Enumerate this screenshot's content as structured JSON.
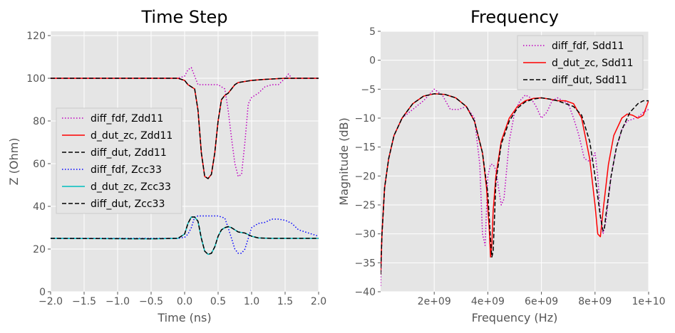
{
  "chart_data": [
    {
      "type": "line",
      "title": "Time Step",
      "xlabel": "Time (ns)",
      "ylabel": "Z (Ohm)",
      "xlim": [
        -2.0,
        2.0
      ],
      "ylim": [
        0,
        122
      ],
      "xticks": [
        -2.0,
        -1.5,
        -1.0,
        -0.5,
        0.0,
        0.5,
        1.0,
        1.5,
        2.0
      ],
      "xtick_labels": [
        "−2.0",
        "−1.5",
        "−1.0",
        "−0.5",
        "0.0",
        "0.5",
        "1.0",
        "1.5",
        "2.0"
      ],
      "yticks": [
        0,
        20,
        40,
        60,
        80,
        100,
        120
      ],
      "ytick_labels": [
        "0",
        "20",
        "40",
        "60",
        "80",
        "100",
        "120"
      ],
      "grid": true,
      "legend_position": "center-left",
      "series": [
        {
          "name": "diff_fdf, Zdd11",
          "color": "#bf00bf",
          "dash": "dotted",
          "x": [
            -2.0,
            -0.5,
            -0.1,
            0.0,
            0.05,
            0.1,
            0.15,
            0.2,
            0.3,
            0.4,
            0.5,
            0.6,
            0.65,
            0.7,
            0.75,
            0.8,
            0.85,
            0.9,
            0.95,
            1.0,
            1.1,
            1.2,
            1.3,
            1.4,
            1.5,
            1.55,
            1.6,
            1.7,
            1.8,
            2.0
          ],
          "y": [
            100,
            100,
            100,
            101,
            104,
            105,
            101,
            97,
            97,
            97,
            97,
            95,
            85,
            72,
            60,
            54,
            55,
            70,
            88,
            91,
            93,
            96,
            97,
            97,
            100,
            102,
            100,
            100,
            100,
            100
          ]
        },
        {
          "name": "d_dut_zc, Zdd11",
          "color": "#ff0000",
          "dash": "solid",
          "x": [
            -2.0,
            -0.5,
            -0.1,
            0.0,
            0.05,
            0.1,
            0.15,
            0.2,
            0.25,
            0.3,
            0.35,
            0.4,
            0.45,
            0.5,
            0.55,
            0.6,
            0.65,
            0.7,
            0.75,
            0.8,
            0.9,
            1.0,
            1.2,
            1.5,
            2.0
          ],
          "y": [
            100,
            100,
            100,
            99,
            97,
            96,
            95,
            85,
            65,
            54,
            53,
            55,
            65,
            80,
            90,
            92,
            93,
            95,
            97,
            98,
            98.5,
            99,
            99.5,
            100,
            100
          ]
        },
        {
          "name": "diff_dut, Zdd11",
          "color": "#000000",
          "dash": "dashed",
          "x": [
            -2.0,
            -0.5,
            -0.1,
            0.0,
            0.05,
            0.1,
            0.15,
            0.2,
            0.25,
            0.3,
            0.35,
            0.4,
            0.45,
            0.5,
            0.55,
            0.6,
            0.65,
            0.7,
            0.75,
            0.8,
            0.9,
            1.0,
            1.2,
            1.5,
            2.0
          ],
          "y": [
            100,
            100,
            100,
            99,
            97,
            96,
            95,
            85,
            65,
            54,
            53,
            55,
            65,
            80,
            90,
            92,
            93,
            95,
            97,
            98,
            98.5,
            99,
            99.5,
            100,
            100
          ]
        },
        {
          "name": "diff_fdf, Zcc33",
          "color": "#0000ff",
          "dash": "dotted",
          "x": [
            -2.0,
            -0.5,
            -0.1,
            0.0,
            0.05,
            0.1,
            0.15,
            0.2,
            0.3,
            0.4,
            0.5,
            0.6,
            0.65,
            0.7,
            0.75,
            0.8,
            0.85,
            0.9,
            0.95,
            1.0,
            1.1,
            1.2,
            1.3,
            1.4,
            1.5,
            1.6,
            1.7,
            1.8,
            2.0
          ],
          "y": [
            25,
            25,
            25,
            25.5,
            27,
            30,
            35,
            35.5,
            35.5,
            35.5,
            35.5,
            34.5,
            30,
            25,
            20,
            18,
            18,
            20,
            25,
            30,
            32,
            32.5,
            34,
            34,
            33.5,
            32,
            29,
            28,
            26
          ]
        },
        {
          "name": "d_dut_zc, Zcc33",
          "color": "#00bfbf",
          "dash": "solid",
          "x": [
            -2.0,
            -0.5,
            -0.1,
            0.0,
            0.05,
            0.1,
            0.15,
            0.2,
            0.25,
            0.3,
            0.35,
            0.4,
            0.45,
            0.5,
            0.55,
            0.6,
            0.65,
            0.7,
            0.75,
            0.8,
            0.9,
            1.0,
            1.1,
            1.3,
            1.5,
            2.0
          ],
          "y": [
            25,
            24.8,
            25,
            27,
            32,
            35,
            35,
            33,
            25,
            19,
            17.5,
            18,
            21,
            26,
            29,
            30,
            30.5,
            30,
            29,
            28,
            27.5,
            26,
            25.2,
            25,
            25,
            25
          ]
        },
        {
          "name": "diff_dut, Zcc33",
          "color": "#000000",
          "dash": "dashed",
          "x": [
            -2.0,
            -0.5,
            -0.1,
            0.0,
            0.05,
            0.1,
            0.15,
            0.2,
            0.25,
            0.3,
            0.35,
            0.4,
            0.45,
            0.5,
            0.55,
            0.6,
            0.65,
            0.7,
            0.75,
            0.8,
            0.9,
            1.0,
            1.1,
            1.3,
            1.5,
            2.0
          ],
          "y": [
            25,
            24.8,
            25,
            27,
            32,
            35,
            35,
            33,
            25,
            19,
            17.5,
            18,
            21,
            26,
            29,
            30,
            30.5,
            30,
            29,
            28,
            27.5,
            26,
            25.2,
            25,
            25,
            25
          ]
        }
      ]
    },
    {
      "type": "line",
      "title": "Frequency",
      "xlabel": "Frequency (Hz)",
      "ylabel": "Magnitude (dB)",
      "xlim": [
        0,
        10000000000
      ],
      "ylim": [
        -40,
        5
      ],
      "xticks": [
        2000000000,
        4000000000,
        6000000000,
        8000000000,
        10000000000
      ],
      "xtick_labels": [
        "2e+09",
        "4e+09",
        "6e+09",
        "8e+09",
        "1e+10"
      ],
      "yticks": [
        -40,
        -35,
        -30,
        -25,
        -20,
        -15,
        -10,
        -5,
        0,
        5
      ],
      "ytick_labels": [
        "−40",
        "−35",
        "−30",
        "−25",
        "−20",
        "−15",
        "−10",
        "−5",
        "0",
        "5"
      ],
      "grid": true,
      "legend_position": "upper-right",
      "series": [
        {
          "name": "diff_fdf, Sdd11",
          "color": "#bf00bf",
          "dash": "dotted",
          "x": [
            0,
            50000000,
            150000000,
            300000000,
            500000000,
            800000000,
            1200000000,
            1600000000,
            2000000000,
            2300000000,
            2600000000,
            2900000000,
            3200000000,
            3500000000,
            3700000000,
            3800000000,
            3900000000,
            4000000000,
            4100000000,
            4200000000,
            4300000000,
            4400000000,
            4500000000,
            4600000000,
            4800000000,
            5000000000,
            5200000000,
            5400000000,
            5600000000,
            5800000000,
            6000000000,
            6200000000,
            6400000000,
            6600000000,
            6800000000,
            7000000000,
            7200000000,
            7400000000,
            7600000000,
            7800000000,
            7900000000,
            8000000000,
            8100000000,
            8200000000,
            8300000000,
            8400000000,
            8600000000,
            8800000000,
            9000000000,
            9200000000,
            9400000000,
            9600000000,
            9800000000,
            10000000000
          ],
          "y": [
            -39,
            -30,
            -22,
            -17,
            -13,
            -10,
            -8.5,
            -7,
            -5,
            -6,
            -8.5,
            -8.5,
            -8,
            -10,
            -18,
            -30,
            -32,
            -20,
            -18,
            -18,
            -19,
            -22,
            -25,
            -24,
            -14,
            -9,
            -7,
            -6,
            -6.5,
            -8,
            -10,
            -9,
            -7,
            -6.5,
            -7,
            -7.5,
            -10,
            -13,
            -17,
            -17.5,
            -17,
            -16,
            -20,
            -27,
            -30,
            -28,
            -20,
            -15,
            -12,
            -10.5,
            -10.2,
            -9.8,
            -9,
            -8.5
          ]
        },
        {
          "name": "d_dut_zc, Sdd11",
          "color": "#ff0000",
          "dash": "solid",
          "x": [
            0,
            50000000,
            150000000,
            300000000,
            500000000,
            800000000,
            1200000000,
            1600000000,
            2000000000,
            2400000000,
            2800000000,
            3200000000,
            3500000000,
            3800000000,
            3950000000,
            4050000000,
            4100000000,
            4150000000,
            4200000000,
            4300000000,
            4500000000,
            4800000000,
            5100000000,
            5400000000,
            5700000000,
            6000000000,
            6300000000,
            6600000000,
            6900000000,
            7200000000,
            7500000000,
            7800000000,
            8000000000,
            8100000000,
            8200000000,
            8300000000,
            8500000000,
            8700000000,
            9000000000,
            9200000000,
            9400000000,
            9600000000,
            9800000000,
            10000000000
          ],
          "y": [
            -37,
            -30,
            -22,
            -17,
            -13,
            -10,
            -7.5,
            -6.2,
            -5.8,
            -5.9,
            -6.5,
            -8,
            -10.5,
            -16,
            -22,
            -29,
            -34,
            -32,
            -26,
            -20,
            -14,
            -10,
            -8,
            -7,
            -6.6,
            -6.5,
            -6.7,
            -7,
            -7,
            -7.5,
            -10,
            -17,
            -25,
            -30,
            -30.5,
            -26,
            -18,
            -13,
            -10,
            -9.3,
            -9.5,
            -10,
            -9.5,
            -7
          ]
        },
        {
          "name": "diff_dut, Sdd11",
          "color": "#000000",
          "dash": "dashed",
          "x": [
            0,
            50000000,
            150000000,
            300000000,
            500000000,
            800000000,
            1200000000,
            1600000000,
            2000000000,
            2400000000,
            2800000000,
            3200000000,
            3500000000,
            3800000000,
            4000000000,
            4100000000,
            4150000000,
            4200000000,
            4250000000,
            4300000000,
            4500000000,
            4800000000,
            5100000000,
            5400000000,
            5700000000,
            6000000000,
            6300000000,
            6600000000,
            6900000000,
            7200000000,
            7500000000,
            7800000000,
            8000000000,
            8200000000,
            8300000000,
            8350000000,
            8400000000,
            8600000000,
            8800000000,
            9000000000,
            9300000000,
            9600000000,
            9800000000,
            10000000000
          ],
          "y": [
            -37,
            -30,
            -22,
            -17,
            -13,
            -10,
            -7.5,
            -6.2,
            -5.8,
            -5.9,
            -6.5,
            -8,
            -10.5,
            -16,
            -23,
            -31,
            -34,
            -33,
            -27,
            -21,
            -14.5,
            -10.5,
            -8.3,
            -7.2,
            -6.7,
            -6.5,
            -6.7,
            -7,
            -7.5,
            -8,
            -9.5,
            -14,
            -20,
            -27,
            -29.5,
            -29,
            -27,
            -20,
            -15,
            -12,
            -9,
            -7.5,
            -7,
            -7
          ]
        }
      ]
    }
  ]
}
